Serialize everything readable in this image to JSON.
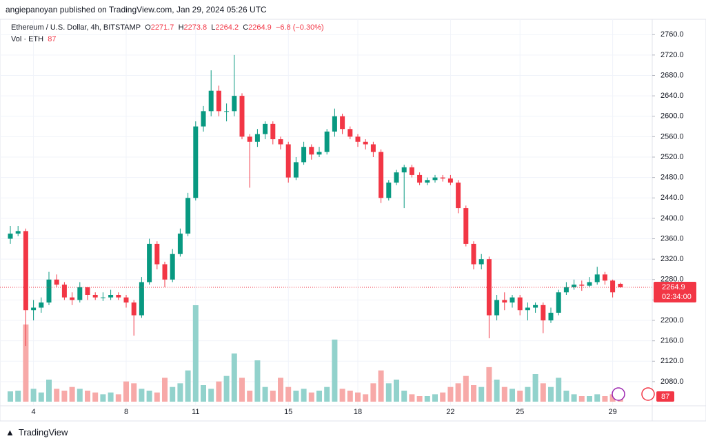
{
  "chart_data": {
    "type": "candlestick",
    "header": "angiepanoyan published on TradingView.com, Jan 29, 2024 05:26 UTC",
    "symbol": "Ethereum / U.S. Dollar, 4h, BITSTAMP",
    "open_label": "O",
    "high_label": "H",
    "low_label": "L",
    "close_label": "C",
    "change": "−6.8 (−0.30%)",
    "volume_label": "Vol · ETH",
    "countdown": "02:34:00",
    "footer": "TradingView",
    "up_color": "#089981",
    "down_color": "#f23645",
    "volume_up_color": "#92d2cc",
    "volume_down_color": "#f7a9a8",
    "categories": [
      null,
      null,
      null,
      "4",
      null,
      null,
      null,
      null,
      null,
      null,
      null,
      null,
      null,
      null,
      null,
      "8",
      null,
      null,
      null,
      null,
      null,
      null,
      null,
      null,
      "11",
      null,
      null,
      null,
      null,
      null,
      null,
      null,
      null,
      null,
      null,
      null,
      "15",
      null,
      null,
      null,
      null,
      null,
      null,
      null,
      null,
      "18",
      null,
      null,
      null,
      null,
      null,
      null,
      null,
      null,
      null,
      null,
      null,
      "22",
      null,
      null,
      null,
      null,
      null,
      null,
      null,
      null,
      "25",
      null,
      null,
      null,
      null,
      null,
      null,
      null,
      null,
      null,
      null,
      null,
      "29",
      null
    ],
    "open": [
      2360,
      2370,
      2375,
      2220,
      2225,
      2235,
      2280,
      2270,
      2245,
      2240,
      2265,
      2250,
      2245,
      2245,
      2250,
      2245,
      2235,
      2210,
      2275,
      2350,
      2310,
      2280,
      2330,
      2370,
      2440,
      2580,
      2610,
      2650,
      2610,
      2610,
      2640,
      2560,
      2550,
      2565,
      2585,
      2555,
      2545,
      2480,
      2510,
      2540,
      2525,
      2530,
      2570,
      2600,
      2575,
      2560,
      2550,
      2545,
      2530,
      2440,
      2470,
      2490,
      2500,
      2485,
      2470,
      2475,
      2480,
      2478,
      2470,
      2420,
      2350,
      2310,
      2320,
      2210,
      2240,
      2235,
      2245,
      2220,
      2225,
      2230,
      2200,
      2215,
      2255,
      2265,
      2270,
      2268,
      2275,
      2290,
      2278,
      2271.7
    ],
    "high": [
      2385,
      2385,
      2380,
      2240,
      2245,
      2295,
      2290,
      2275,
      2255,
      2275,
      2265,
      2255,
      2255,
      2260,
      2255,
      2250,
      2240,
      2285,
      2360,
      2355,
      2315,
      2340,
      2380,
      2450,
      2590,
      2620,
      2690,
      2660,
      2625,
      2720,
      2645,
      2565,
      2575,
      2590,
      2590,
      2560,
      2550,
      2520,
      2550,
      2545,
      2540,
      2575,
      2615,
      2605,
      2580,
      2565,
      2555,
      2550,
      2535,
      2475,
      2495,
      2505,
      2505,
      2490,
      2480,
      2485,
      2485,
      2485,
      2475,
      2425,
      2355,
      2330,
      2325,
      2250,
      2255,
      2250,
      2250,
      2235,
      2235,
      2235,
      2225,
      2260,
      2275,
      2280,
      2278,
      2285,
      2305,
      2295,
      2280,
      2273.8
    ],
    "low": [
      2350,
      2365,
      2150,
      2200,
      2215,
      2230,
      2265,
      2240,
      2230,
      2235,
      2240,
      2240,
      2238,
      2240,
      2240,
      2225,
      2170,
      2205,
      2270,
      2300,
      2265,
      2275,
      2325,
      2365,
      2435,
      2570,
      2600,
      2600,
      2590,
      2600,
      2555,
      2460,
      2540,
      2555,
      2545,
      2535,
      2470,
      2475,
      2505,
      2515,
      2520,
      2525,
      2560,
      2565,
      2555,
      2540,
      2535,
      2520,
      2430,
      2435,
      2465,
      2420,
      2480,
      2465,
      2465,
      2470,
      2472,
      2465,
      2410,
      2345,
      2300,
      2300,
      2165,
      2200,
      2220,
      2225,
      2210,
      2200,
      2215,
      2175,
      2195,
      2210,
      2250,
      2260,
      2258,
      2265,
      2270,
      2270,
      2245,
      2264.2
    ],
    "close": [
      2370,
      2375,
      2220,
      2225,
      2235,
      2280,
      2270,
      2245,
      2240,
      2265,
      2250,
      2245,
      2245,
      2250,
      2245,
      2235,
      2210,
      2275,
      2350,
      2310,
      2280,
      2330,
      2370,
      2440,
      2580,
      2610,
      2650,
      2610,
      2610,
      2640,
      2560,
      2550,
      2565,
      2585,
      2555,
      2545,
      2480,
      2510,
      2540,
      2525,
      2530,
      2570,
      2600,
      2575,
      2560,
      2550,
      2545,
      2530,
      2440,
      2470,
      2490,
      2500,
      2485,
      2470,
      2475,
      2480,
      2478,
      2470,
      2420,
      2350,
      2310,
      2320,
      2210,
      2240,
      2235,
      2245,
      2220,
      2225,
      2230,
      2200,
      2215,
      2255,
      2265,
      2270,
      2268,
      2275,
      2290,
      2278,
      2255,
      2264.9
    ],
    "volume": [
      280,
      300,
      2100,
      350,
      250,
      600,
      350,
      300,
      400,
      350,
      300,
      250,
      200,
      250,
      200,
      550,
      500,
      350,
      300,
      250,
      650,
      400,
      500,
      850,
      2625,
      450,
      350,
      550,
      700,
      1310,
      650,
      300,
      1125,
      400,
      300,
      650,
      400,
      300,
      350,
      250,
      300,
      400,
      1690,
      350,
      300,
      250,
      200,
      500,
      850,
      500,
      600,
      300,
      200,
      150,
      150,
      200,
      250,
      400,
      500,
      700,
      450,
      400,
      940,
      600,
      400,
      350,
      300,
      400,
      750,
      500,
      400,
      650,
      300,
      200,
      150,
      150,
      200,
      150,
      200,
      87
    ],
    "vlim": [
      0,
      3000
    ],
    "ylim": [
      2034,
      2790
    ],
    "yticks": [
      {
        "value": 2080,
        "label": "2080.0"
      },
      {
        "value": 2120,
        "label": "2120.0"
      },
      {
        "value": 2160,
        "label": "2160.0"
      },
      {
        "value": 2200,
        "label": "2200.0"
      },
      {
        "value": 2240,
        "label": "2240.0"
      },
      {
        "value": 2280,
        "label": "2280.0"
      },
      {
        "value": 2320,
        "label": "2320.0"
      },
      {
        "value": 2360,
        "label": "2360.0"
      },
      {
        "value": 2400,
        "label": "2400.0"
      },
      {
        "value": 2440,
        "label": "2440.0"
      },
      {
        "value": 2480,
        "label": "2480.0"
      },
      {
        "value": 2520,
        "label": "2520.0"
      },
      {
        "value": 2560,
        "label": "2560.0"
      },
      {
        "value": 2600,
        "label": "2600.0"
      },
      {
        "value": 2640,
        "label": "2640.0"
      },
      {
        "value": 2680,
        "label": "2680.0"
      },
      {
        "value": 2720,
        "label": "2720.0"
      },
      {
        "value": 2760,
        "label": "2760.0"
      }
    ],
    "grid": true
  }
}
